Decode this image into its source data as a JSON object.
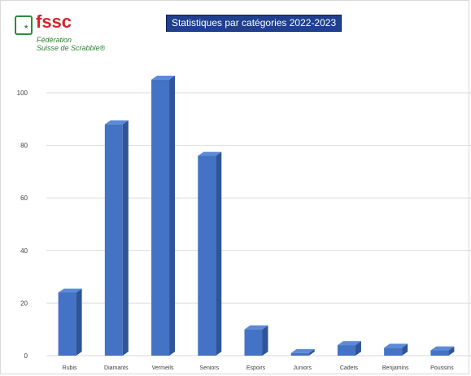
{
  "logo": {
    "wordmark": "fssc",
    "line1": "Fédération",
    "line2": "Suisse de Scrabble®",
    "star": "★"
  },
  "chart_data": {
    "type": "bar",
    "title": "Statistiques par catégories 2022-2023",
    "categories": [
      "Rubis",
      "Diamants",
      "Vermeils",
      "Seniors",
      "Espoirs",
      "Juniors",
      "Cadets",
      "Benjamins",
      "Poussins"
    ],
    "values": [
      24,
      88,
      105,
      76,
      10,
      1,
      4,
      3,
      2
    ],
    "ylim": [
      0,
      100
    ],
    "yticks": [
      0,
      20,
      40,
      60,
      80,
      100
    ],
    "xlabel": "",
    "ylabel": "",
    "grid": true,
    "legend": "none",
    "colors": {
      "bar_front": "#4472c4",
      "bar_side": "#2f5597",
      "bar_top": "#5b8bd6",
      "grid": "#d9d9d9"
    }
  }
}
